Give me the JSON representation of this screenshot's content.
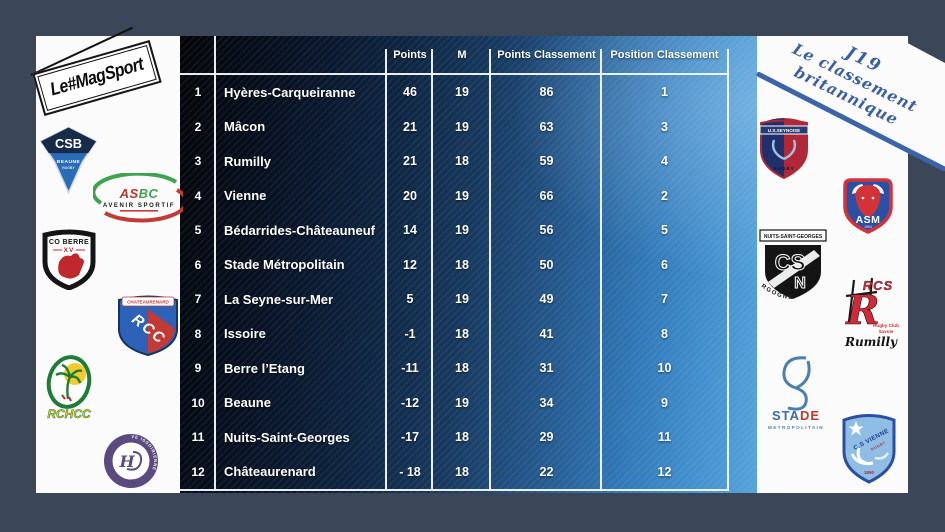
{
  "background_color": "#3b4658",
  "accent_blue": "#3d63a8",
  "table_gradient": [
    "#030609",
    "#57a3da"
  ],
  "brand": {
    "magsport": "Le#MagSport"
  },
  "corner_note": {
    "line1": "J19",
    "line2": "Le classement",
    "line3": "britannique",
    "color": "#3a5fa5"
  },
  "table": {
    "headers": {
      "points": "Points",
      "matches": "M",
      "points_classement": "Points Classement",
      "position_classement": "Position Classement"
    },
    "rows": [
      {
        "rank": "1",
        "team": "Hyères-Carqueiranne",
        "points": "46",
        "m": "19",
        "points_classement": "86",
        "position_classement": "1"
      },
      {
        "rank": "2",
        "team": "Mâcon",
        "points": "21",
        "m": "19",
        "points_classement": "63",
        "position_classement": "3"
      },
      {
        "rank": "3",
        "team": "Rumilly",
        "points": "21",
        "m": "18",
        "points_classement": "59",
        "position_classement": "4"
      },
      {
        "rank": "4",
        "team": "Vienne",
        "points": "20",
        "m": "19",
        "points_classement": "66",
        "position_classement": "2"
      },
      {
        "rank": "5",
        "team": "Bédarrides-Châteauneuf",
        "points": "14",
        "m": "19",
        "points_classement": "56",
        "position_classement": "5"
      },
      {
        "rank": "6",
        "team": "Stade Métropolitain",
        "points": "12",
        "m": "18",
        "points_classement": "50",
        "position_classement": "6"
      },
      {
        "rank": "7",
        "team": "La Seyne-sur-Mer",
        "points": "5",
        "m": "19",
        "points_classement": "49",
        "position_classement": "7"
      },
      {
        "rank": "8",
        "team": "Issoire",
        "points": "-1",
        "m": "18",
        "points_classement": "41",
        "position_classement": "8"
      },
      {
        "rank": "9",
        "team": "Berre l’Etang",
        "points": "-11",
        "m": "18",
        "points_classement": "31",
        "position_classement": "10"
      },
      {
        "rank": "10",
        "team": "Beaune",
        "points": "-12",
        "m": "19",
        "points_classement": "34",
        "position_classement": "9"
      },
      {
        "rank": "11",
        "team": "Nuits-Saint-Georges",
        "points": "-17",
        "m": "18",
        "points_classement": "29",
        "position_classement": "11"
      },
      {
        "rank": "12",
        "team": "Châteaurenard",
        "points": "- 18",
        "m": "18",
        "points_classement": "22",
        "position_classement": "12"
      }
    ]
  },
  "chart_data": {
    "type": "table",
    "title": "J19 Le classement britannique",
    "columns": [
      "",
      "",
      "Points",
      "M",
      "Points Classement",
      "Position Classement"
    ],
    "rows": [
      [
        1,
        "Hyères-Carqueiranne",
        46,
        19,
        86,
        1
      ],
      [
        2,
        "Mâcon",
        21,
        19,
        63,
        3
      ],
      [
        3,
        "Rumilly",
        21,
        18,
        59,
        4
      ],
      [
        4,
        "Vienne",
        20,
        19,
        66,
        2
      ],
      [
        5,
        "Bédarrides-Châteauneuf",
        14,
        19,
        56,
        5
      ],
      [
        6,
        "Stade Métropolitain",
        12,
        18,
        50,
        6
      ],
      [
        7,
        "La Seyne-sur-Mer",
        5,
        19,
        49,
        7
      ],
      [
        8,
        "Issoire",
        -1,
        18,
        41,
        8
      ],
      [
        9,
        "Berre l’Etang",
        -11,
        18,
        31,
        10
      ],
      [
        10,
        "Beaune",
        -12,
        19,
        34,
        9
      ],
      [
        11,
        "Nuits-Saint-Georges",
        -17,
        18,
        29,
        11
      ],
      [
        12,
        "Châteaurenard",
        -18,
        18,
        22,
        12
      ]
    ]
  },
  "left_logos": {
    "csb": {
      "abbr": "CSB",
      "city": "BEAUNE",
      "sport": "RUGBY"
    },
    "asbc": {
      "ab1": "AS",
      "ab2": "BC",
      "name": "AVENIR SPORTIF"
    },
    "berre": {
      "name": "CO BERRE",
      "roman": "XV"
    },
    "rcc": {
      "banner": "CHATEAURENARD",
      "abbr": "RCC"
    },
    "rchcc": {
      "abbr": "RCHCC"
    },
    "issoire": {
      "ring": "UNION SPORTIVE ISSOIRIENNE",
      "center": "H"
    }
  },
  "right_logos": {
    "seynoise": {
      "banner": "U.S.SEYNOISE",
      "sport": "RUGBY"
    },
    "asm": {
      "abbr": "ASM",
      "year": "1904"
    },
    "csn": {
      "top": "NUITS-SAINT-GEORGES",
      "letters_top": "CS",
      "letters_bottom": "N",
      "region": "BOURGOGNE"
    },
    "rcs": {
      "abbr": "RCS",
      "big_letter": "R",
      "line1": "Rugby Club",
      "line2": "Savoie",
      "script": "Rumilly"
    },
    "stade": {
      "part1": "STA",
      "part2": "DE",
      "sub": "METROPOLITAIN"
    },
    "vienne": {
      "name": "C.S VIENNE",
      "sub": "RUGBY",
      "year": "1890"
    }
  }
}
